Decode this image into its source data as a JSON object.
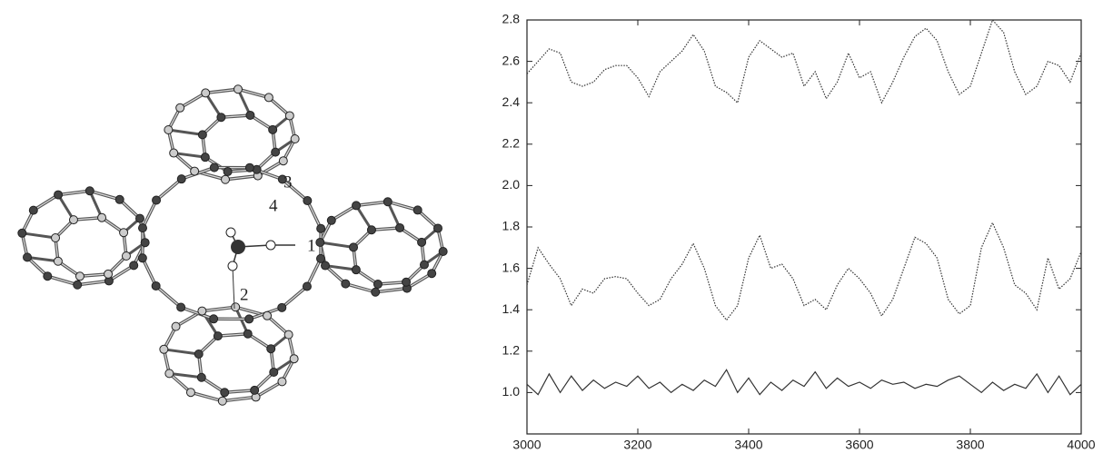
{
  "diagram": {
    "labels": [
      "1",
      "2",
      "3",
      "4"
    ]
  },
  "chart_data": {
    "type": "line",
    "x": [
      3000,
      3020,
      3040,
      3060,
      3080,
      3100,
      3120,
      3140,
      3160,
      3180,
      3200,
      3220,
      3240,
      3260,
      3280,
      3300,
      3320,
      3340,
      3360,
      3380,
      3400,
      3420,
      3440,
      3460,
      3480,
      3500,
      3520,
      3540,
      3560,
      3580,
      3600,
      3620,
      3640,
      3660,
      3680,
      3700,
      3720,
      3740,
      3760,
      3780,
      3800,
      3820,
      3840,
      3860,
      3880,
      3900,
      3920,
      3940,
      3960,
      3980,
      4000
    ],
    "series": [
      {
        "color": "#333333",
        "linestyle": "dotted",
        "values": [
          2.54,
          2.6,
          2.66,
          2.64,
          2.5,
          2.48,
          2.5,
          2.56,
          2.58,
          2.58,
          2.52,
          2.43,
          2.55,
          2.6,
          2.65,
          2.73,
          2.65,
          2.48,
          2.45,
          2.4,
          2.62,
          2.7,
          2.66,
          2.62,
          2.64,
          2.48,
          2.55,
          2.42,
          2.5,
          2.64,
          2.52,
          2.55,
          2.4,
          2.5,
          2.62,
          2.72,
          2.76,
          2.7,
          2.55,
          2.44,
          2.48,
          2.64,
          2.8,
          2.74,
          2.55,
          2.44,
          2.48,
          2.6,
          2.58,
          2.5,
          2.64
        ]
      },
      {
        "color": "#333333",
        "linestyle": "dotted",
        "values": [
          1.52,
          1.7,
          1.62,
          1.55,
          1.42,
          1.5,
          1.48,
          1.55,
          1.56,
          1.55,
          1.48,
          1.42,
          1.45,
          1.55,
          1.62,
          1.72,
          1.6,
          1.42,
          1.35,
          1.42,
          1.65,
          1.76,
          1.6,
          1.62,
          1.55,
          1.42,
          1.45,
          1.4,
          1.52,
          1.6,
          1.55,
          1.48,
          1.37,
          1.45,
          1.6,
          1.75,
          1.72,
          1.65,
          1.45,
          1.38,
          1.42,
          1.7,
          1.82,
          1.7,
          1.52,
          1.48,
          1.4,
          1.65,
          1.5,
          1.55,
          1.68
        ]
      },
      {
        "color": "#333333",
        "linestyle": "solid",
        "values": [
          1.04,
          0.99,
          1.09,
          1.0,
          1.08,
          1.01,
          1.06,
          1.02,
          1.05,
          1.03,
          1.08,
          1.02,
          1.05,
          1.0,
          1.04,
          1.01,
          1.06,
          1.03,
          1.11,
          1.0,
          1.07,
          0.99,
          1.05,
          1.01,
          1.06,
          1.03,
          1.1,
          1.02,
          1.07,
          1.03,
          1.05,
          1.02,
          1.06,
          1.04,
          1.05,
          1.02,
          1.04,
          1.03,
          1.06,
          1.08,
          1.04,
          1.0,
          1.05,
          1.01,
          1.04,
          1.02,
          1.09,
          1.0,
          1.08,
          0.99,
          1.04
        ]
      }
    ],
    "xlim": [
      3000,
      4000
    ],
    "xticks": [
      3000,
      3200,
      3400,
      3600,
      3800,
      4000
    ],
    "ylim": [
      0.8,
      2.8
    ],
    "yticks": [
      {
        "value": 1.0,
        "label": "1.0"
      },
      1.2,
      1.4,
      1.6,
      1.8,
      {
        "value": 2.0,
        "label": "2.0"
      },
      2.2,
      2.4,
      2.6,
      2.8
    ]
  }
}
